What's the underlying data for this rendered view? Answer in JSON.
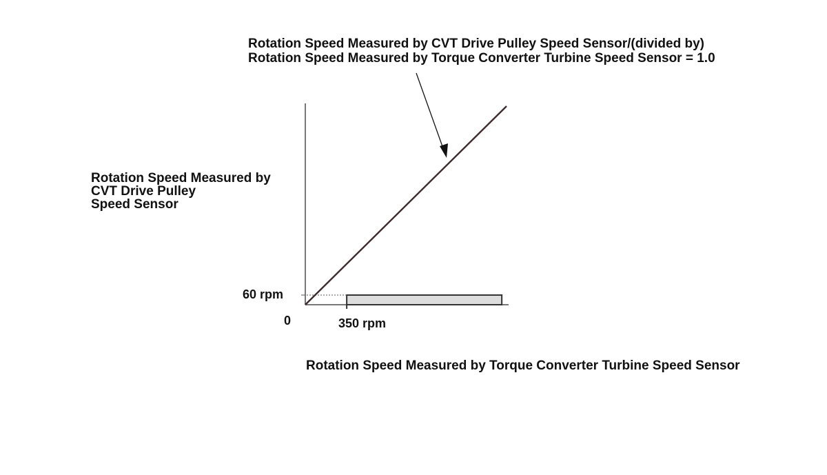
{
  "chart_data": {
    "type": "line",
    "title": "",
    "annotation": {
      "lines": [
        "Rotation Speed Measured by CVT Drive Pulley Speed Sensor/(divided by)",
        "Rotation Speed Measured by Torque Converter Turbine Speed Sensor = 1.0"
      ]
    },
    "ylabel_lines": [
      "Rotation Speed Measured by",
      "CVT Drive Pulley",
      "Speed Sensor"
    ],
    "xlabel": "Rotation Speed Measured by Torque Converter Turbine Speed Sensor",
    "origin_label": "0",
    "x_tick": {
      "value": 350,
      "label": "350 rpm"
    },
    "y_tick": {
      "value": 60,
      "label": "60 rpm"
    },
    "series": [
      {
        "x": [
          0,
          1700
        ],
        "y": [
          0,
          1700
        ]
      }
    ],
    "shaded_region": {
      "x": [
        350,
        1660
      ],
      "y": [
        0,
        60
      ]
    },
    "xlim": [
      0,
      1700
    ],
    "ylim": [
      0,
      1700
    ],
    "colors": {
      "axis": "#777777",
      "line": "#3d2b2e",
      "region_fill": "#dddddd",
      "region_stroke": "#333333",
      "text": "#111111",
      "dashed_guide": "#555555"
    }
  }
}
